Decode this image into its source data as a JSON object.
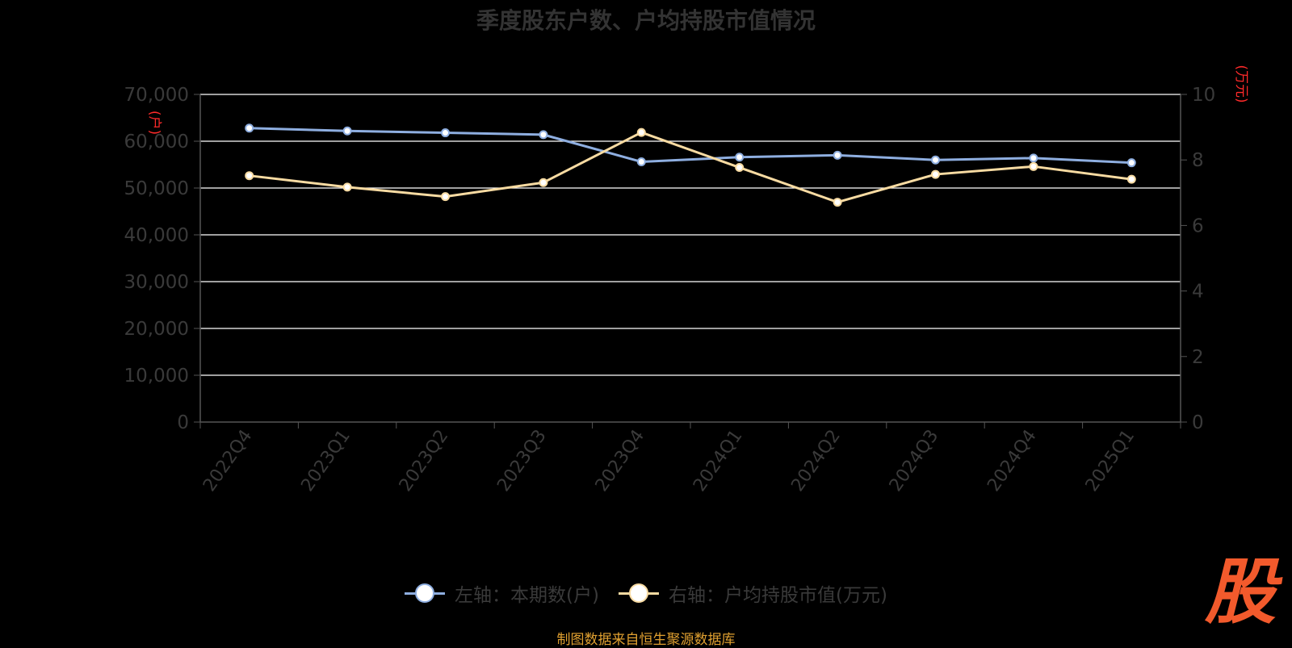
{
  "title": "季度股东户数、户均持股市值情况",
  "legend": {
    "left": "左轴：本期数(户)",
    "right": "右轴：户均持股市值(万元)"
  },
  "source_note": "制图数据来自恒生聚源数据库",
  "watermark": "股",
  "colors": {
    "left_series": "#8eaee0",
    "right_series": "#f8dba2",
    "axis_unit": "#ff2a2a",
    "axis_text": "#3a3a3a",
    "grid": "#ffffff"
  },
  "chart_data": {
    "type": "line",
    "categories": [
      "2022Q4",
      "2023Q1",
      "2023Q2",
      "2023Q3",
      "2023Q4",
      "2024Q1",
      "2024Q2",
      "2024Q3",
      "2024Q4",
      "2025Q1"
    ],
    "left_axis": {
      "unit": "(户)",
      "ylim": [
        0,
        70000
      ],
      "ticks": [
        0,
        10000,
        20000,
        30000,
        40000,
        50000,
        60000,
        70000
      ],
      "tick_labels": [
        "0",
        "10,000",
        "20,000",
        "30,000",
        "40,000",
        "50,000",
        "60,000",
        "70,000"
      ]
    },
    "right_axis": {
      "unit": "(万元)",
      "ylim": [
        0,
        10
      ],
      "ticks": [
        0,
        2,
        4,
        6,
        8,
        10
      ],
      "tick_labels": [
        "0",
        "2",
        "4",
        "6",
        "8",
        "10"
      ]
    },
    "series": [
      {
        "name": "左轴：本期数(户)",
        "axis": "left",
        "values": [
          62800,
          62200,
          61800,
          61400,
          55600,
          56600,
          57000,
          56000,
          56400,
          55400
        ]
      },
      {
        "name": "右轴：户均持股市值(万元)",
        "axis": "right",
        "values": [
          7.52,
          7.17,
          6.88,
          7.31,
          8.84,
          7.77,
          6.71,
          7.56,
          7.8,
          7.41
        ]
      }
    ],
    "grid": true,
    "legend_position": "bottom"
  }
}
